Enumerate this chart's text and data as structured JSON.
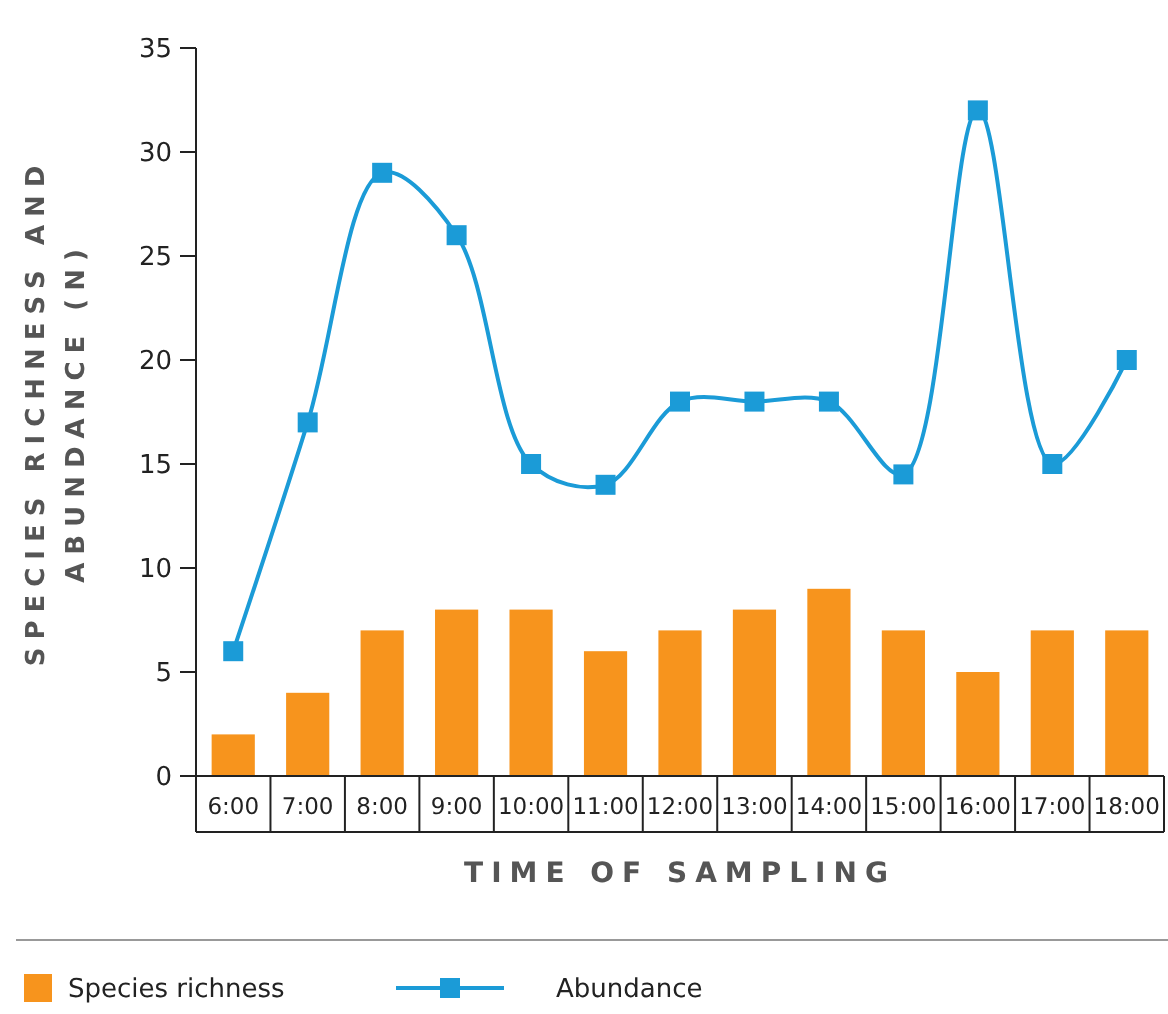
{
  "chart_data": {
    "type": "bar",
    "xlabel": "TIME OF SAMPLING",
    "ylabel": "SPECIES RICHNESS AND ABUNDANCE (N)",
    "categories": [
      "6:00",
      "7:00",
      "8:00",
      "9:00",
      "10:00",
      "11:00",
      "12:00",
      "13:00",
      "14:00",
      "15:00",
      "16:00",
      "17:00",
      "18:00"
    ],
    "series": [
      {
        "name": "Species richness",
        "color": "#f7941d",
        "values": [
          2,
          4,
          7,
          8,
          8,
          6,
          7,
          8,
          9,
          7,
          5,
          7,
          7
        ]
      },
      {
        "name": "Abundance",
        "type": "line",
        "color": "#1b9bd7",
        "marker": "square",
        "values": [
          6,
          17,
          29,
          26,
          15,
          14,
          18,
          18,
          18,
          14.5,
          32,
          15,
          20
        ]
      }
    ],
    "ylim": [
      0,
      35
    ],
    "yticks": [
      0,
      5,
      10,
      15,
      20,
      25,
      30,
      35
    ],
    "legend": "bottom",
    "grid": false
  }
}
